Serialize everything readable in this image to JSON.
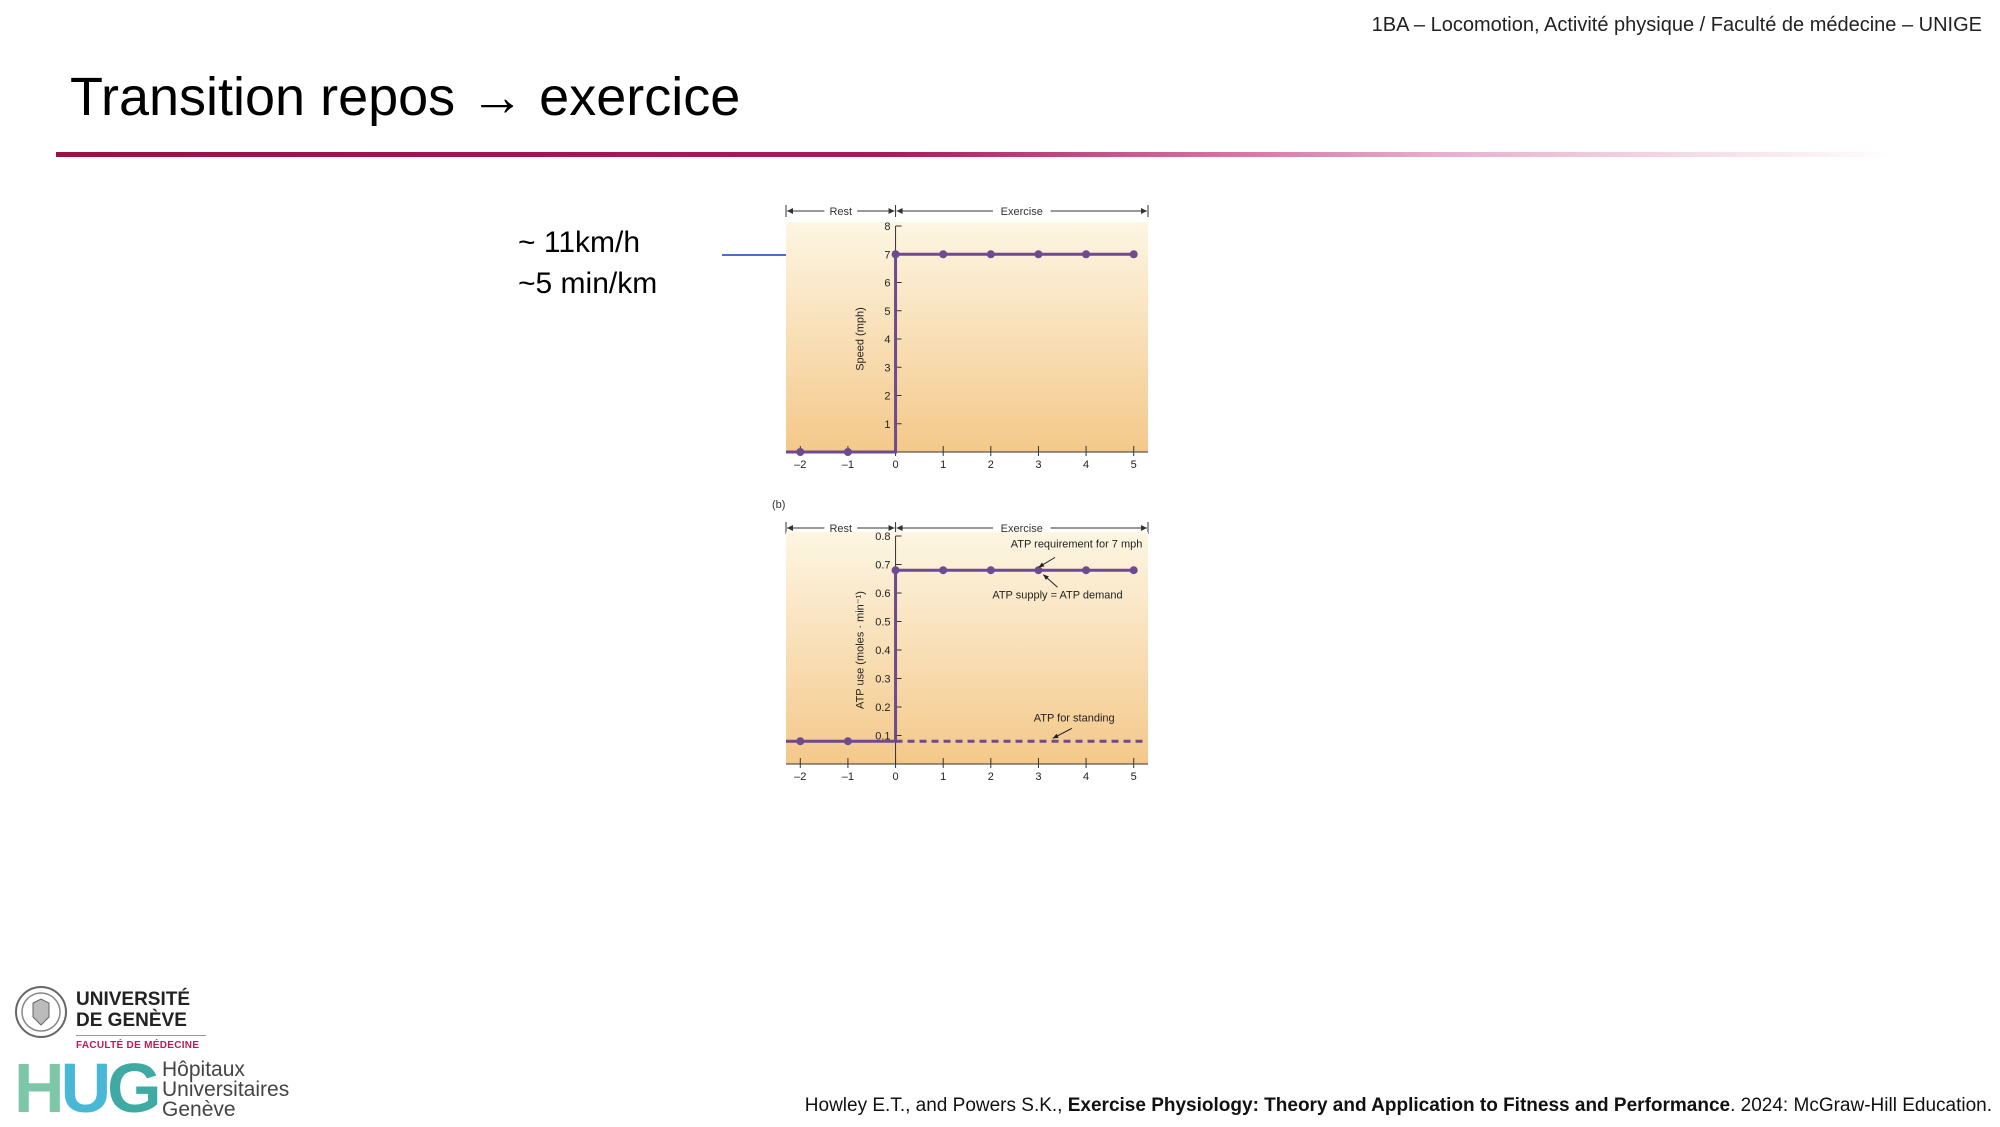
{
  "header": {
    "course": "1BA – Locomotion, Activité physique / Faculté de médecine – UNIGE"
  },
  "slide": {
    "title": "Transition repos → exercice"
  },
  "annotation": {
    "line1": "~ 11km/h",
    "line2": "~5 min/km",
    "arrow_color": "#4472c4"
  },
  "citation": {
    "authors": "Howley E.T., and Powers S.K., ",
    "book": "Exercise Physiology: Theory and Application to Fitness and Performance",
    "rest": ". 2024: McGraw-Hill Education."
  },
  "logos": {
    "unige_line1": "UNIVERSITÉ",
    "unige_line2": "DE GENÈVE",
    "faculty": "FACULTÉ DE MÉDECINE",
    "hug_letters_h": "H",
    "hug_letters_u": "U",
    "hug_letters_g": "G",
    "hug_name_1": "Hôpitaux",
    "hug_name_2": "Universitaires",
    "hug_name_3": "Genève"
  },
  "colors": {
    "line": "#6e4a8e",
    "background_top": "#fdf6e3",
    "background_bottom": "#f4c88a",
    "title_rule": "#9b1046"
  },
  "chart_data": [
    {
      "type": "line",
      "panel_label": "",
      "phase_labels": [
        "Rest",
        "Exercise"
      ],
      "ylabel": "Speed (mph)",
      "xlabel": "",
      "xlim": [
        -2.3,
        5.3
      ],
      "ylim": [
        0,
        8
      ],
      "x_ticks": [
        -2,
        -1,
        0,
        1,
        2,
        3,
        4,
        5
      ],
      "x_tick_labels": [
        "–2",
        "–1",
        "0",
        "1",
        "2",
        "3",
        "4",
        "5"
      ],
      "y_ticks": [
        1,
        2,
        3,
        4,
        5,
        6,
        7,
        8
      ],
      "y_tick_labels": [
        "1",
        "2",
        "3",
        "4",
        "5",
        "6",
        "7",
        "8"
      ],
      "series": [
        {
          "style": "solid",
          "x": [
            -2.3,
            0,
            0,
            5
          ],
          "y": [
            0,
            0,
            7,
            7
          ],
          "markers_x": [
            -2,
            -1,
            0,
            1,
            2,
            3,
            4,
            5
          ],
          "markers_y": [
            0,
            0,
            7,
            7,
            7,
            7,
            7,
            7
          ]
        }
      ],
      "annotations": []
    },
    {
      "type": "line",
      "panel_label": "(b)",
      "phase_labels": [
        "Rest",
        "Exercise"
      ],
      "ylabel": "ATP use (moles · min⁻¹)",
      "xlabel": "",
      "xlim": [
        -2.3,
        5.3
      ],
      "ylim": [
        0,
        0.8
      ],
      "x_ticks": [
        -2,
        -1,
        0,
        1,
        2,
        3,
        4,
        5
      ],
      "x_tick_labels": [
        "–2",
        "–1",
        "0",
        "1",
        "2",
        "3",
        "4",
        "5"
      ],
      "y_ticks": [
        0.1,
        0.2,
        0.3,
        0.4,
        0.5,
        0.6,
        0.7,
        0.8
      ],
      "y_tick_labels": [
        "0.1",
        "0.2",
        "0.3",
        "0.4",
        "0.5",
        "0.6",
        "0.7",
        "0.8"
      ],
      "series": [
        {
          "style": "solid",
          "x": [
            -2.3,
            0,
            0,
            5
          ],
          "y": [
            0.08,
            0.08,
            0.68,
            0.68
          ],
          "markers_x": [
            -2,
            -1,
            0,
            1,
            2,
            3,
            4,
            5
          ],
          "markers_y": [
            0.08,
            0.08,
            0.68,
            0.68,
            0.68,
            0.68,
            0.68,
            0.68
          ]
        },
        {
          "style": "dashed",
          "x": [
            0,
            5.2
          ],
          "y": [
            0.08,
            0.08
          ],
          "markers_x": [],
          "markers_y": []
        }
      ],
      "annotations": [
        {
          "text": "ATP requirement for 7 mph",
          "x": 3.8,
          "y": 0.76,
          "arrow_to": [
            3.0,
            0.69
          ],
          "arrow_from": [
            3.35,
            0.725
          ]
        },
        {
          "text": "ATP supply = ATP demand",
          "x": 3.4,
          "y": 0.58,
          "arrow_to": [
            3.1,
            0.665
          ],
          "arrow_from": [
            3.4,
            0.62
          ]
        },
        {
          "text": "ATP for standing",
          "x": 3.75,
          "y": 0.15,
          "arrow_to": [
            3.3,
            0.09
          ],
          "arrow_from": [
            3.7,
            0.125
          ]
        }
      ]
    }
  ]
}
